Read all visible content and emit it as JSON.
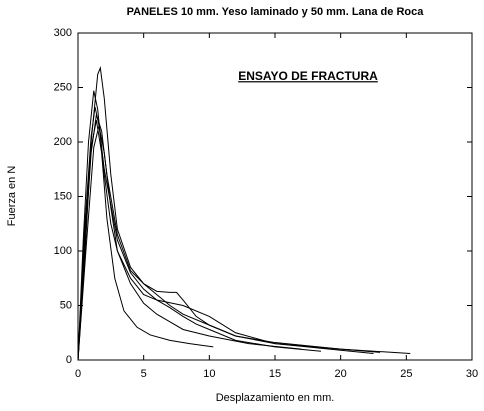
{
  "chart_data": {
    "type": "line",
    "title": "PANELES 10 mm. Yeso laminado y 50 mm. Lana de Roca",
    "annotation": "ENSAYO DE FRACTURA",
    "xlabel": "Desplazamiento en mm.",
    "ylabel": "Fuerza en N",
    "xlim": [
      0,
      30
    ],
    "xticks": [
      0,
      5,
      10,
      15,
      20,
      25,
      30
    ],
    "ylim": [
      0,
      300
    ],
    "yticks": [
      0,
      50,
      100,
      150,
      200,
      250,
      300
    ],
    "series": [
      {
        "color": "#000000",
        "x": [
          0,
          0.5,
          1,
          1.5,
          1.7,
          2,
          2.5,
          3,
          4,
          5,
          6,
          7,
          7.5,
          8,
          9,
          10,
          12,
          15,
          20,
          25.3
        ],
        "values": [
          0,
          90,
          200,
          262,
          268,
          240,
          170,
          120,
          85,
          70,
          63,
          62,
          62,
          55,
          40,
          32,
          22,
          16,
          10,
          6
        ]
      },
      {
        "color": "#000000",
        "x": [
          0,
          0.4,
          0.8,
          1.2,
          1.5,
          2,
          2.5,
          3,
          4,
          5,
          6,
          8,
          10,
          12,
          15,
          20,
          23
        ],
        "values": [
          0,
          110,
          200,
          247,
          230,
          170,
          125,
          100,
          75,
          60,
          55,
          50,
          40,
          25,
          15,
          10,
          7
        ]
      },
      {
        "color": "#000000",
        "x": [
          0,
          0.5,
          1,
          1.3,
          1.6,
          2,
          3,
          4,
          5,
          6,
          7,
          8,
          9,
          10,
          12,
          15,
          18.5
        ],
        "values": [
          0,
          120,
          205,
          232,
          215,
          175,
          110,
          80,
          65,
          55,
          48,
          40,
          33,
          28,
          18,
          12,
          8
        ]
      },
      {
        "color": "#000000",
        "x": [
          0,
          0.5,
          1,
          1.4,
          1.8,
          2.2,
          3,
          4,
          5,
          6,
          7,
          8,
          10,
          12,
          15,
          20,
          22.5
        ],
        "values": [
          0,
          100,
          190,
          225,
          210,
          170,
          115,
          82,
          70,
          60,
          50,
          42,
          32,
          22,
          15,
          9,
          6
        ]
      },
      {
        "color": "#000000",
        "x": [
          0,
          0.6,
          1.2,
          1.6,
          2,
          2.5,
          3,
          4,
          5,
          6,
          7,
          8,
          10,
          13,
          17
        ],
        "values": [
          0,
          100,
          195,
          215,
          190,
          140,
          100,
          70,
          52,
          42,
          35,
          28,
          22,
          15,
          10
        ]
      },
      {
        "color": "#000000",
        "x": [
          0,
          0.5,
          1,
          1.4,
          1.8,
          2.2,
          2.8,
          3.5,
          4.5,
          5.5,
          7,
          8.5,
          10.3
        ],
        "values": [
          0,
          110,
          195,
          220,
          190,
          130,
          75,
          45,
          30,
          23,
          18,
          15,
          12
        ]
      }
    ]
  }
}
